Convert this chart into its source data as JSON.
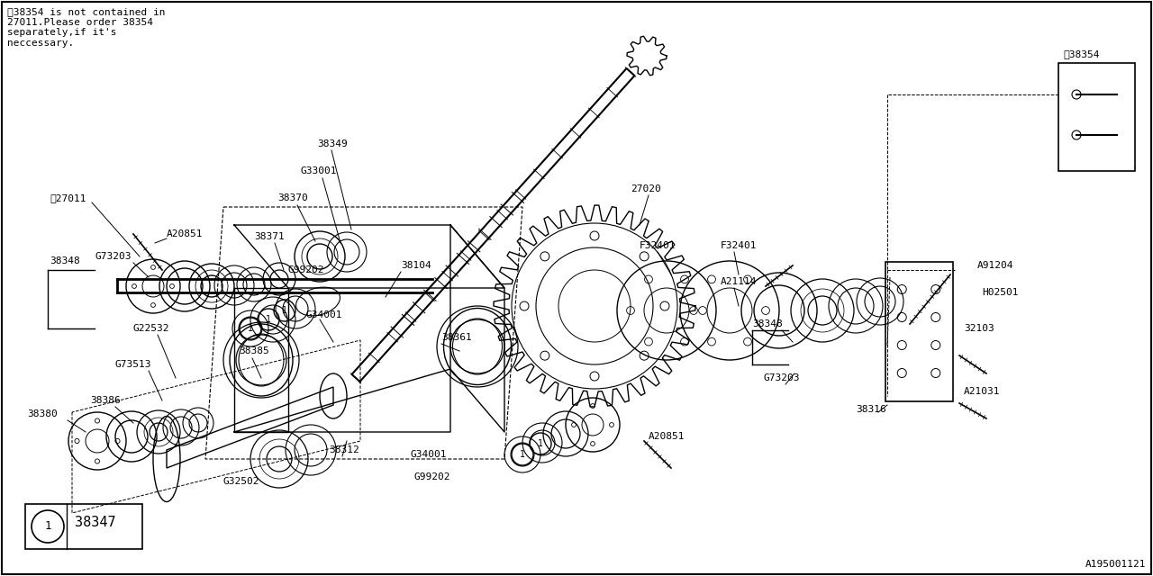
{
  "bg_color": "#ffffff",
  "line_color": "#000000",
  "text_color": "#000000",
  "note_text": "※38354 is not contained in\n27011.Please order 38354\nseparately,if it's\nneccessary.",
  "legend_part": "38347",
  "diagram_id": "A195001121",
  "figw": 12.8,
  "figh": 6.4,
  "dpi": 100
}
